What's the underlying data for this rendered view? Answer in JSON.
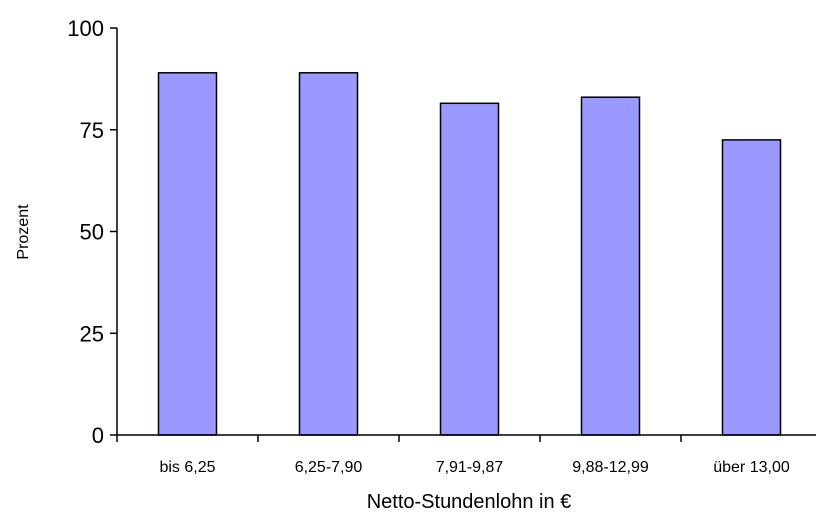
{
  "chart_data": {
    "type": "bar",
    "title": "",
    "xlabel": "Netto-Stundenlohn in €",
    "ylabel": "Prozent",
    "categories": [
      "bis 6,25",
      "6,25-7,90",
      "7,91-9,87",
      "9,88-12,99",
      "über 13,00"
    ],
    "values": [
      89,
      89,
      81.5,
      83,
      72.5
    ],
    "ylim": [
      0,
      100
    ],
    "yticks": [
      "0",
      "25",
      "50",
      "75",
      "100"
    ],
    "grid": false,
    "legend": "none",
    "bar_color": "#9999ff",
    "bar_edge_color": "#000000"
  }
}
